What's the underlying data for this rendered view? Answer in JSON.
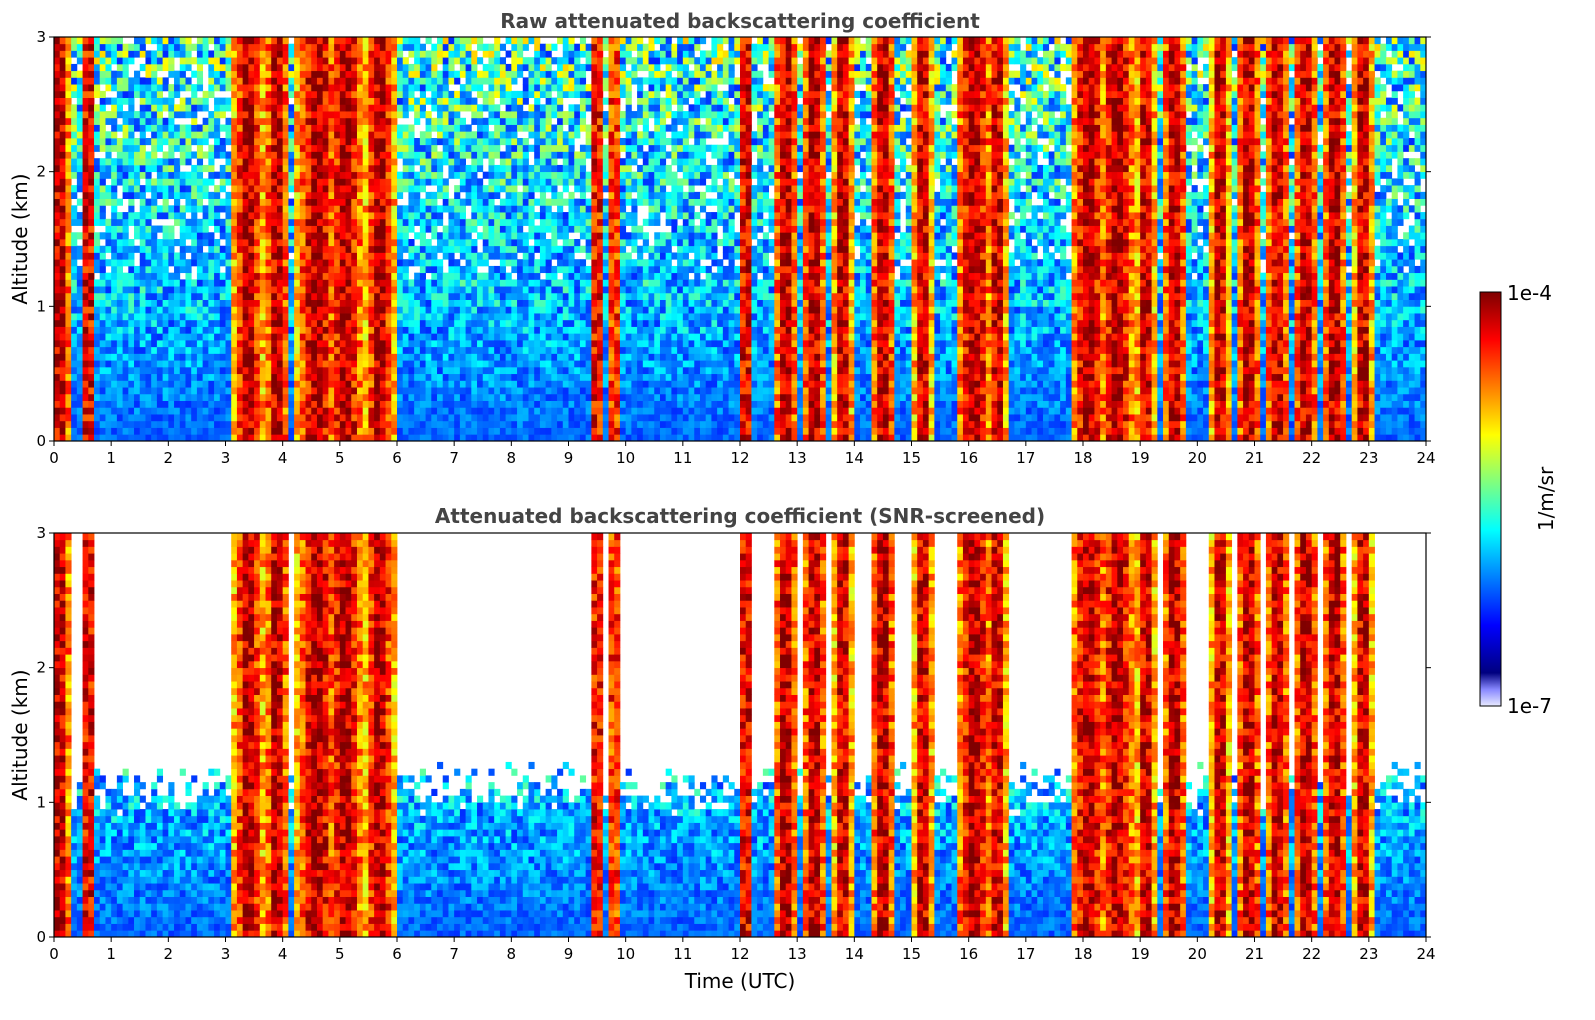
{
  "chart_data": [
    {
      "type": "heatmap",
      "title": "Raw attenuated backscattering coefficient",
      "ylabel": "Altitude (km)",
      "xlabel": "",
      "xlim": [
        0,
        24
      ],
      "ylim": [
        0,
        3
      ],
      "x_ticks": [
        "0",
        "1",
        "2",
        "3",
        "4",
        "5",
        "6",
        "7",
        "8",
        "9",
        "10",
        "11",
        "12",
        "13",
        "14",
        "15",
        "16",
        "17",
        "18",
        "19",
        "20",
        "21",
        "22",
        "23",
        "24"
      ],
      "y_ticks": [
        "0",
        "1",
        "2",
        "3"
      ],
      "grid": false,
      "scale": "log",
      "value_range": [
        1e-07,
        0.0001
      ],
      "colormap": "jet",
      "screened": false
    },
    {
      "type": "heatmap",
      "title": "Attenuated backscattering coefficient (SNR-screened)",
      "ylabel": "Altitude (km)",
      "xlabel": "Time (UTC)",
      "xlim": [
        0,
        24
      ],
      "ylim": [
        0,
        3
      ],
      "x_ticks": [
        "0",
        "1",
        "2",
        "3",
        "4",
        "5",
        "6",
        "7",
        "8",
        "9",
        "10",
        "11",
        "12",
        "13",
        "14",
        "15",
        "16",
        "17",
        "18",
        "19",
        "20",
        "21",
        "22",
        "23",
        "24"
      ],
      "y_ticks": [
        "0",
        "1",
        "2",
        "3"
      ],
      "grid": false,
      "scale": "log",
      "value_range": [
        1e-07,
        0.0001
      ],
      "colormap": "jet",
      "screened": true
    }
  ],
  "colorbar": {
    "max_label": "1e-4",
    "min_label": "1e-7",
    "label": "1/m/sr",
    "colors": [
      "#00007f",
      "#0000ff",
      "#007fff",
      "#00ffff",
      "#7fff7f",
      "#ffff00",
      "#ff7f00",
      "#ff0000",
      "#7f0000"
    ]
  }
}
